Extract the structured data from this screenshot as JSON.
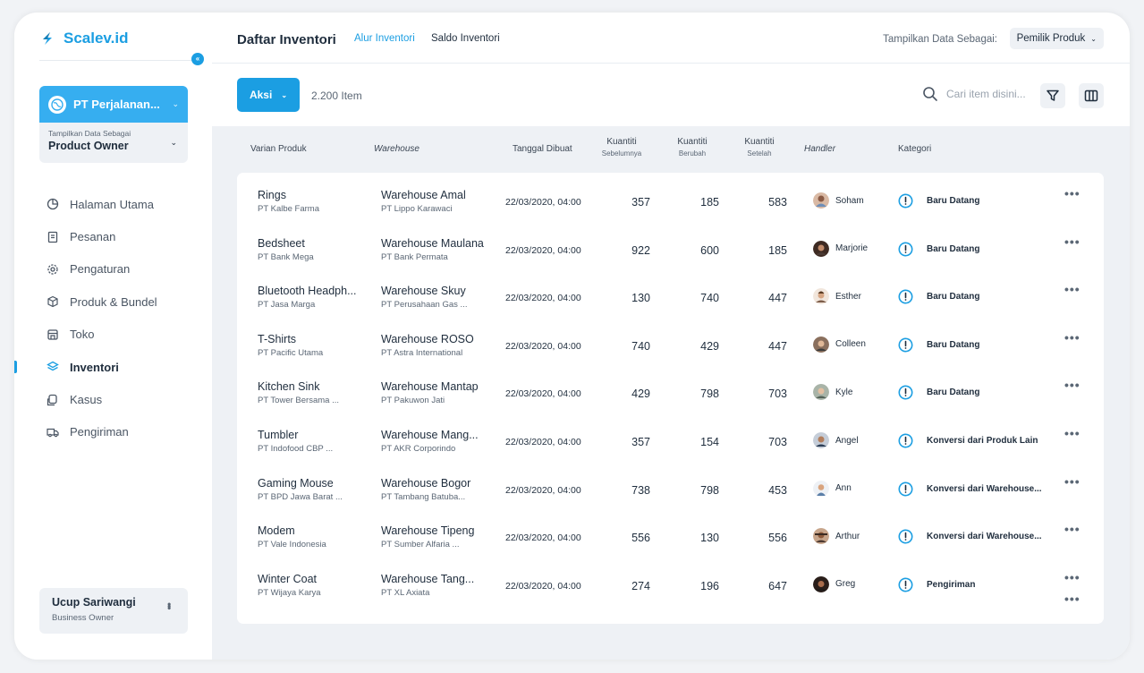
{
  "brand": {
    "name": "Scalev.id",
    "collapse_icon": "double-chevron-left-icon"
  },
  "company": {
    "name": "PT Perjalanan...",
    "display_label": "Tampilkan Data Sebagai",
    "display_value": "Product Owner"
  },
  "nav": {
    "items": [
      {
        "label": "Halaman Utama",
        "icon": "pie-chart-icon",
        "active": false
      },
      {
        "label": "Pesanan",
        "icon": "document-icon",
        "active": false
      },
      {
        "label": "Pengaturan",
        "icon": "gear-icon",
        "active": false
      },
      {
        "label": "Produk & Bundel",
        "icon": "cube-icon",
        "active": false
      },
      {
        "label": "Toko",
        "icon": "store-icon",
        "active": false
      },
      {
        "label": "Inventori",
        "icon": "layers-icon",
        "active": true
      },
      {
        "label": "Kasus",
        "icon": "cases-icon",
        "active": false
      },
      {
        "label": "Pengiriman",
        "icon": "truck-icon",
        "active": false
      }
    ]
  },
  "user": {
    "name": "Ucup Sariwangi",
    "role": "Business Owner"
  },
  "header": {
    "title": "Daftar Inventori",
    "tabs": [
      "Alur Inventori",
      "Saldo Inventori"
    ],
    "active_tab": "Alur Inventori",
    "display_label": "Tampilkan Data Sebagai:",
    "display_value": "Pemilik Produk"
  },
  "toolbar": {
    "action_label": "Aksi",
    "item_count": "2.200 Item",
    "search_placeholder": "Cari item disini..."
  },
  "table": {
    "headers": {
      "variant": "Varian Produk",
      "warehouse": "Warehouse",
      "date": "Tanggal Dibuat",
      "qty": "Kuantiti",
      "qty_before": "Sebelumnya",
      "qty_change": "Berubah",
      "qty_after": "Setelah",
      "handler": "Handler",
      "category": "Kategori"
    },
    "rows": [
      {
        "product": "Rings",
        "company": "PT Kalbe Farma",
        "warehouse": "Warehouse Amal",
        "wh_company": "PT Lippo Karawaci",
        "date": "22/03/2020, 04:00",
        "before": "357",
        "change": "185",
        "after": "583",
        "handler": "Soham",
        "category": "Baru Datang"
      },
      {
        "product": "Bedsheet",
        "company": "PT Bank Mega",
        "warehouse": "Warehouse Maulana",
        "wh_company": "PT Bank Permata",
        "date": "22/03/2020, 04:00",
        "before": "922",
        "change": "600",
        "after": "185",
        "handler": "Marjorie",
        "category": "Baru Datang"
      },
      {
        "product": "Bluetooth Headph...",
        "company": "PT Jasa Marga",
        "warehouse": "Warehouse Skuy",
        "wh_company": "PT Perusahaan Gas ...",
        "date": "22/03/2020, 04:00",
        "before": "130",
        "change": "740",
        "after": "447",
        "handler": "Esther",
        "category": "Baru Datang"
      },
      {
        "product": "T-Shirts",
        "company": "PT Pacific Utama",
        "warehouse": "Warehouse ROSO",
        "wh_company": "PT Astra International",
        "date": "22/03/2020, 04:00",
        "before": "740",
        "change": "429",
        "after": "447",
        "handler": "Colleen",
        "category": "Baru Datang"
      },
      {
        "product": "Kitchen Sink",
        "company": "PT Tower Bersama ...",
        "warehouse": "Warehouse Mantap",
        "wh_company": "PT Pakuwon Jati",
        "date": "22/03/2020, 04:00",
        "before": "429",
        "change": "798",
        "after": "703",
        "handler": "Kyle",
        "category": "Baru Datang"
      },
      {
        "product": "Tumbler",
        "company": "PT Indofood CBP ...",
        "warehouse": "Warehouse Mang...",
        "wh_company": "PT AKR Corporindo",
        "date": "22/03/2020, 04:00",
        "before": "357",
        "change": "154",
        "after": "703",
        "handler": "Angel",
        "category": "Konversi dari Produk Lain"
      },
      {
        "product": "Gaming Mouse",
        "company": "PT BPD Jawa Barat ...",
        "warehouse": "Warehouse Bogor",
        "wh_company": "PT Tambang Batuba...",
        "date": "22/03/2020, 04:00",
        "before": "738",
        "change": "798",
        "after": "453",
        "handler": "Ann",
        "category": "Konversi dari Warehouse..."
      },
      {
        "product": "Modem",
        "company": "PT Vale Indonesia",
        "warehouse": "Warehouse Tipeng",
        "wh_company": "PT Sumber Alfaria ...",
        "date": "22/03/2020, 04:00",
        "before": "556",
        "change": "130",
        "after": "556",
        "handler": "Arthur",
        "category": "Konversi dari Warehouse..."
      },
      {
        "product": "Winter Coat",
        "company": "PT Wijaya Karya",
        "warehouse": "Warehouse Tang...",
        "wh_company": "PT XL Axiata",
        "date": "22/03/2020, 04:00",
        "before": "274",
        "change": "196",
        "after": "647",
        "handler": "Greg",
        "category": "Pengiriman"
      }
    ]
  },
  "colors": {
    "accent": "#1b9ee2",
    "background": "#eef1f5",
    "text": "#1f2d3d"
  }
}
